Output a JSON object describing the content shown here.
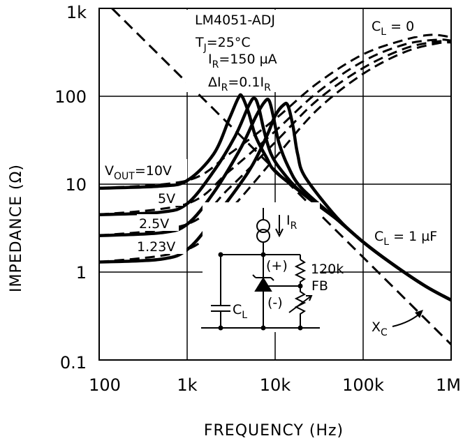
{
  "chart_data": {
    "type": "line",
    "title": "",
    "xlabel": "FREQUENCY (Hz)",
    "ylabel": "IMPEDANCE (Ω)",
    "xscale": "log",
    "yscale": "log",
    "xlim": [
      100,
      1000000
    ],
    "ylim": [
      0.1,
      1000
    ],
    "grid": true,
    "x_ticks": [
      {
        "value": 100,
        "label": "100"
      },
      {
        "value": 1000,
        "label": "1k"
      },
      {
        "value": 10000,
        "label": "10k"
      },
      {
        "value": 100000,
        "label": "100k"
      },
      {
        "value": 1000000,
        "label": "1M"
      }
    ],
    "y_ticks": [
      {
        "value": 0.1,
        "label": "0.1"
      },
      {
        "value": 1,
        "label": "1"
      },
      {
        "value": 10,
        "label": "10"
      },
      {
        "value": 100,
        "label": "100"
      },
      {
        "value": 1000,
        "label": "1k"
      }
    ],
    "conditions": {
      "device": "LM4051-ADJ",
      "tj_main": "T",
      "tj_sub": "J",
      "tj_rest": "=25°C",
      "ir_main": "I",
      "ir_sub": "R",
      "ir_rest": "=150 µA",
      "dir_main": "ΔI",
      "dir_sub": "R",
      "dir_rest": "=0.1I",
      "dir_sub2": "R"
    },
    "series_cl1uF": [
      {
        "name": "V_OUT = 10V",
        "label_main": "V",
        "label_sub": "OUT",
        "label_rest": "=10V",
        "x": [
          100,
          500,
          1000,
          2000,
          3000,
          3800,
          4200,
          5000,
          6000,
          8000,
          10000,
          20000,
          50000,
          100000,
          200000,
          500000,
          1000000
        ],
        "y": [
          9,
          9.5,
          11,
          22,
          55,
          95,
          100,
          65,
          35,
          20,
          14,
          8,
          4,
          2.2,
          1.3,
          0.7,
          0.48
        ]
      },
      {
        "name": "5V",
        "label_main": "5V",
        "x": [
          100,
          500,
          1000,
          2000,
          3500,
          5000,
          5800,
          6500,
          7500,
          9000,
          12000,
          20000,
          50000,
          100000,
          200000,
          500000,
          1000000
        ],
        "y": [
          4.5,
          4.8,
          6,
          14,
          35,
          78,
          95,
          75,
          40,
          22,
          14,
          8,
          4,
          2.2,
          1.3,
          0.7,
          0.48
        ]
      },
      {
        "name": "2.5V",
        "label_main": "2.5V",
        "x": [
          100,
          500,
          1000,
          2000,
          4000,
          6000,
          7500,
          8500,
          9500,
          11000,
          14000,
          20000,
          50000,
          100000,
          200000,
          500000,
          1000000
        ],
        "y": [
          2.6,
          2.8,
          3.5,
          8,
          25,
          58,
          85,
          90,
          60,
          30,
          16,
          9,
          4,
          2.2,
          1.3,
          0.7,
          0.48
        ]
      },
      {
        "name": "1.23V",
        "label_main": "1.23V",
        "x": [
          100,
          500,
          1000,
          2000,
          5000,
          8000,
          10000,
          12500,
          14000,
          16000,
          18000,
          22000,
          50000,
          100000,
          200000,
          500000,
          1000000
        ],
        "y": [
          1.3,
          1.4,
          1.8,
          4,
          14,
          35,
          60,
          80,
          78,
          45,
          22,
          12,
          4.2,
          2.2,
          1.3,
          0.7,
          0.48
        ]
      }
    ],
    "series_cl0": [
      {
        "name": "C_L = 0 (10V)",
        "x": [
          100,
          1000,
          3000,
          10000,
          30000,
          100000,
          300000,
          600000,
          1000000
        ],
        "y": [
          9,
          11,
          22,
          55,
          140,
          300,
          440,
          500,
          470
        ]
      },
      {
        "name": "C_L = 0 (5V)",
        "x": [
          100,
          1000,
          3000,
          10000,
          30000,
          100000,
          300000,
          700000,
          1000000
        ],
        "y": [
          4.5,
          6,
          14,
          40,
          110,
          250,
          390,
          440,
          430
        ]
      },
      {
        "name": "C_L = 0 (2.5V)",
        "x": [
          100,
          1000,
          3000,
          10000,
          30000,
          100000,
          300000,
          700000,
          1000000
        ],
        "y": [
          2.6,
          3.5,
          9,
          30,
          90,
          210,
          350,
          420,
          420
        ]
      },
      {
        "name": "C_L = 0 (1.23V)",
        "x": [
          100,
          1000,
          3000,
          10000,
          30000,
          100000,
          300000,
          700000,
          1000000
        ],
        "y": [
          1.3,
          1.8,
          5,
          20,
          70,
          180,
          320,
          400,
          410
        ]
      }
    ],
    "xc_line": {
      "name": "X_C",
      "x": [
        140,
        1000000
      ],
      "y": [
        1000,
        0.15
      ]
    },
    "annotations": {
      "cl0_main": "C",
      "cl0_sub": "L",
      "cl0_rest": " = 0",
      "cl1_main": "C",
      "cl1_sub": "L",
      "cl1_rest": " = 1 µF",
      "xc_main": "X",
      "xc_sub": "C"
    },
    "schematic": {
      "ir_main": "I",
      "ir_sub": "R",
      "plus": "(+)",
      "minus": "(-)",
      "r_label": "120k",
      "fb": "FB",
      "cap_main": "C",
      "cap_sub": "L"
    },
    "style": {
      "curve_color": "#000000",
      "grid_color": "#000000",
      "background": "#ffffff"
    }
  }
}
